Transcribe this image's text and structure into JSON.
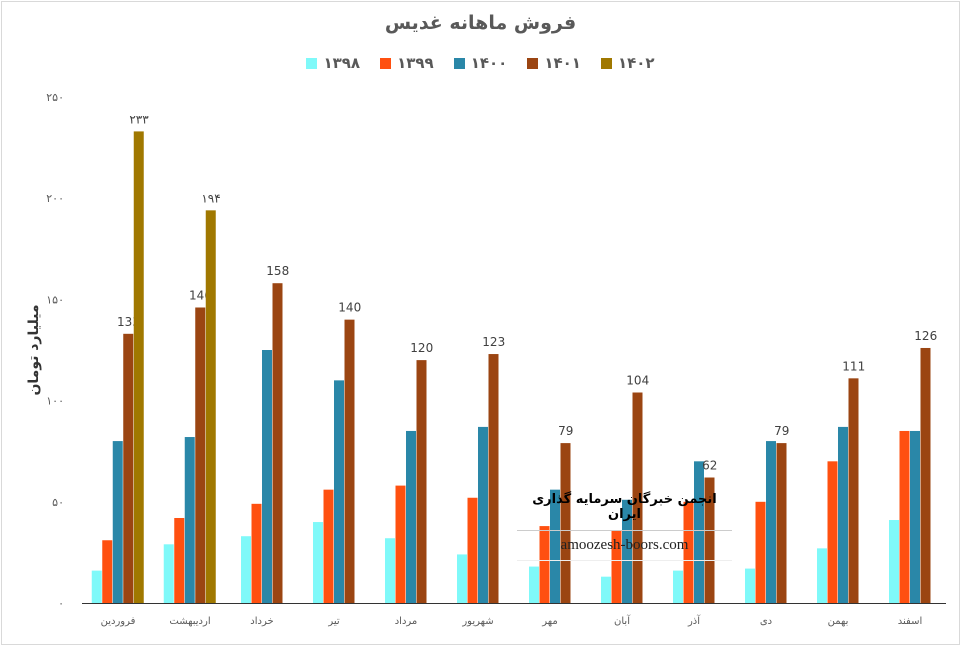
{
  "chart_data": {
    "type": "bar",
    "title": "فروش ماهانه غدیس",
    "ylabel": "میلیارد تومان",
    "xlabel": "",
    "ylim": [
      0,
      250
    ],
    "yticks": [
      0,
      50,
      100,
      150,
      200,
      250
    ],
    "ytick_labels": [
      "۰",
      "۵۰",
      "۱۰۰",
      "۱۵۰",
      "۲۰۰",
      "۲۵۰"
    ],
    "legend_position": "top",
    "categories": [
      "فروردین",
      "اردیبهشت",
      "خرداد",
      "تیر",
      "مرداد",
      "شهریور",
      "مهر",
      "آبان",
      "آذر",
      "دی",
      "بهمن",
      "اسفند"
    ],
    "series": [
      {
        "name": "۱۳۹۸",
        "color": "#7ff9f9",
        "values": [
          16,
          29,
          33,
          40,
          32,
          24,
          18,
          13,
          16,
          17,
          27,
          41
        ]
      },
      {
        "name": "۱۳۹۹",
        "color": "#ff5010",
        "values": [
          31,
          42,
          49,
          56,
          58,
          52,
          38,
          36,
          50,
          50,
          70,
          85
        ]
      },
      {
        "name": "۱۴۰۰",
        "color": "#2a87a8",
        "values": [
          80,
          82,
          125,
          110,
          85,
          87,
          56,
          51,
          70,
          80,
          87,
          85
        ]
      },
      {
        "name": "۱۴۰۱",
        "color": "#9b4512",
        "values": [
          133,
          146,
          158,
          140,
          120,
          123,
          79,
          104,
          62,
          79,
          111,
          126
        ],
        "labels": [
          "133",
          "146",
          "158",
          "140",
          "120",
          "123",
          "79",
          "104",
          "62",
          "79",
          "111",
          "126"
        ]
      },
      {
        "name": "۱۴۰۲",
        "color": "#a07800",
        "values": [
          233,
          194,
          null,
          null,
          null,
          null,
          null,
          null,
          null,
          null,
          null,
          null
        ],
        "labels": [
          "۲۳۳",
          "۱۹۴"
        ]
      }
    ]
  },
  "watermark": {
    "line1": "انجمن خبرگان سرمایه گذاری ایران",
    "line2": "amoozesh-boors.com"
  }
}
